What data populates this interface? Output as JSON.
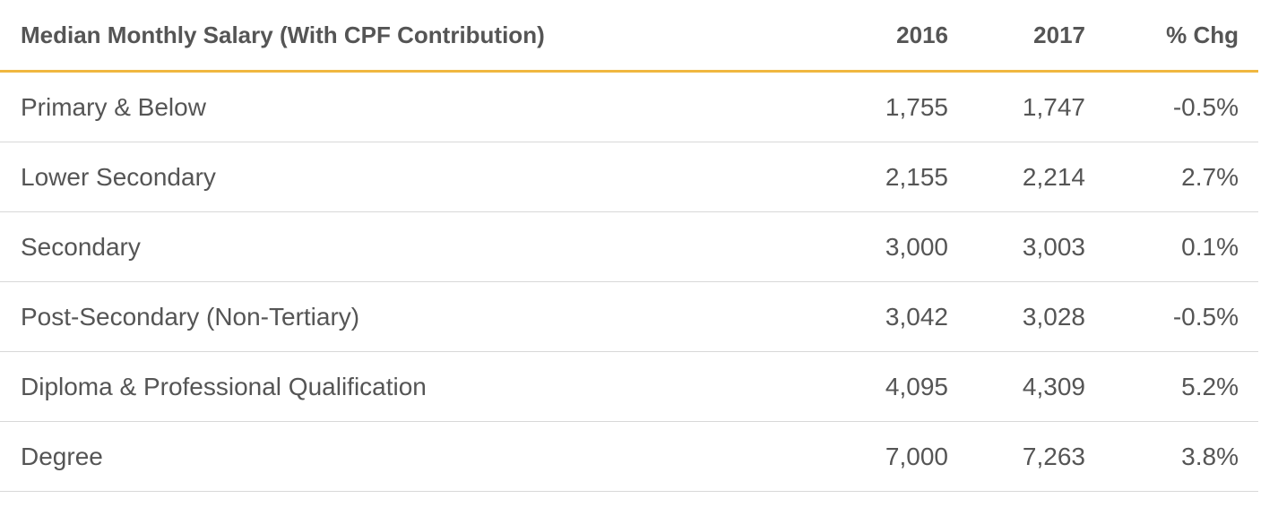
{
  "table": {
    "headers": {
      "label": "Median Monthly Salary (With CPF Contribution)",
      "y2016": "2016",
      "y2017": "2017",
      "chg": "% Chg"
    },
    "rows": [
      {
        "label": "Primary & Below",
        "y2016": "1,755",
        "y2017": "1,747",
        "chg": "-0.5%"
      },
      {
        "label": "Lower Secondary",
        "y2016": "2,155",
        "y2017": "2,214",
        "chg": "2.7%"
      },
      {
        "label": "Secondary",
        "y2016": "3,000",
        "y2017": "3,003",
        "chg": "0.1%"
      },
      {
        "label": "Post-Secondary (Non-Tertiary)",
        "y2016": "3,042",
        "y2017": "3,028",
        "chg": "-0.5%"
      },
      {
        "label": "Diploma & Professional Qualification",
        "y2016": "4,095",
        "y2017": "4,309",
        "chg": "5.2%"
      },
      {
        "label": "Degree",
        "y2016": "7,000",
        "y2017": "7,263",
        "chg": "3.8%"
      }
    ]
  },
  "colors": {
    "text": "#555555",
    "header_rule": "#f0b73f",
    "row_rule": "#d8d8d8"
  }
}
